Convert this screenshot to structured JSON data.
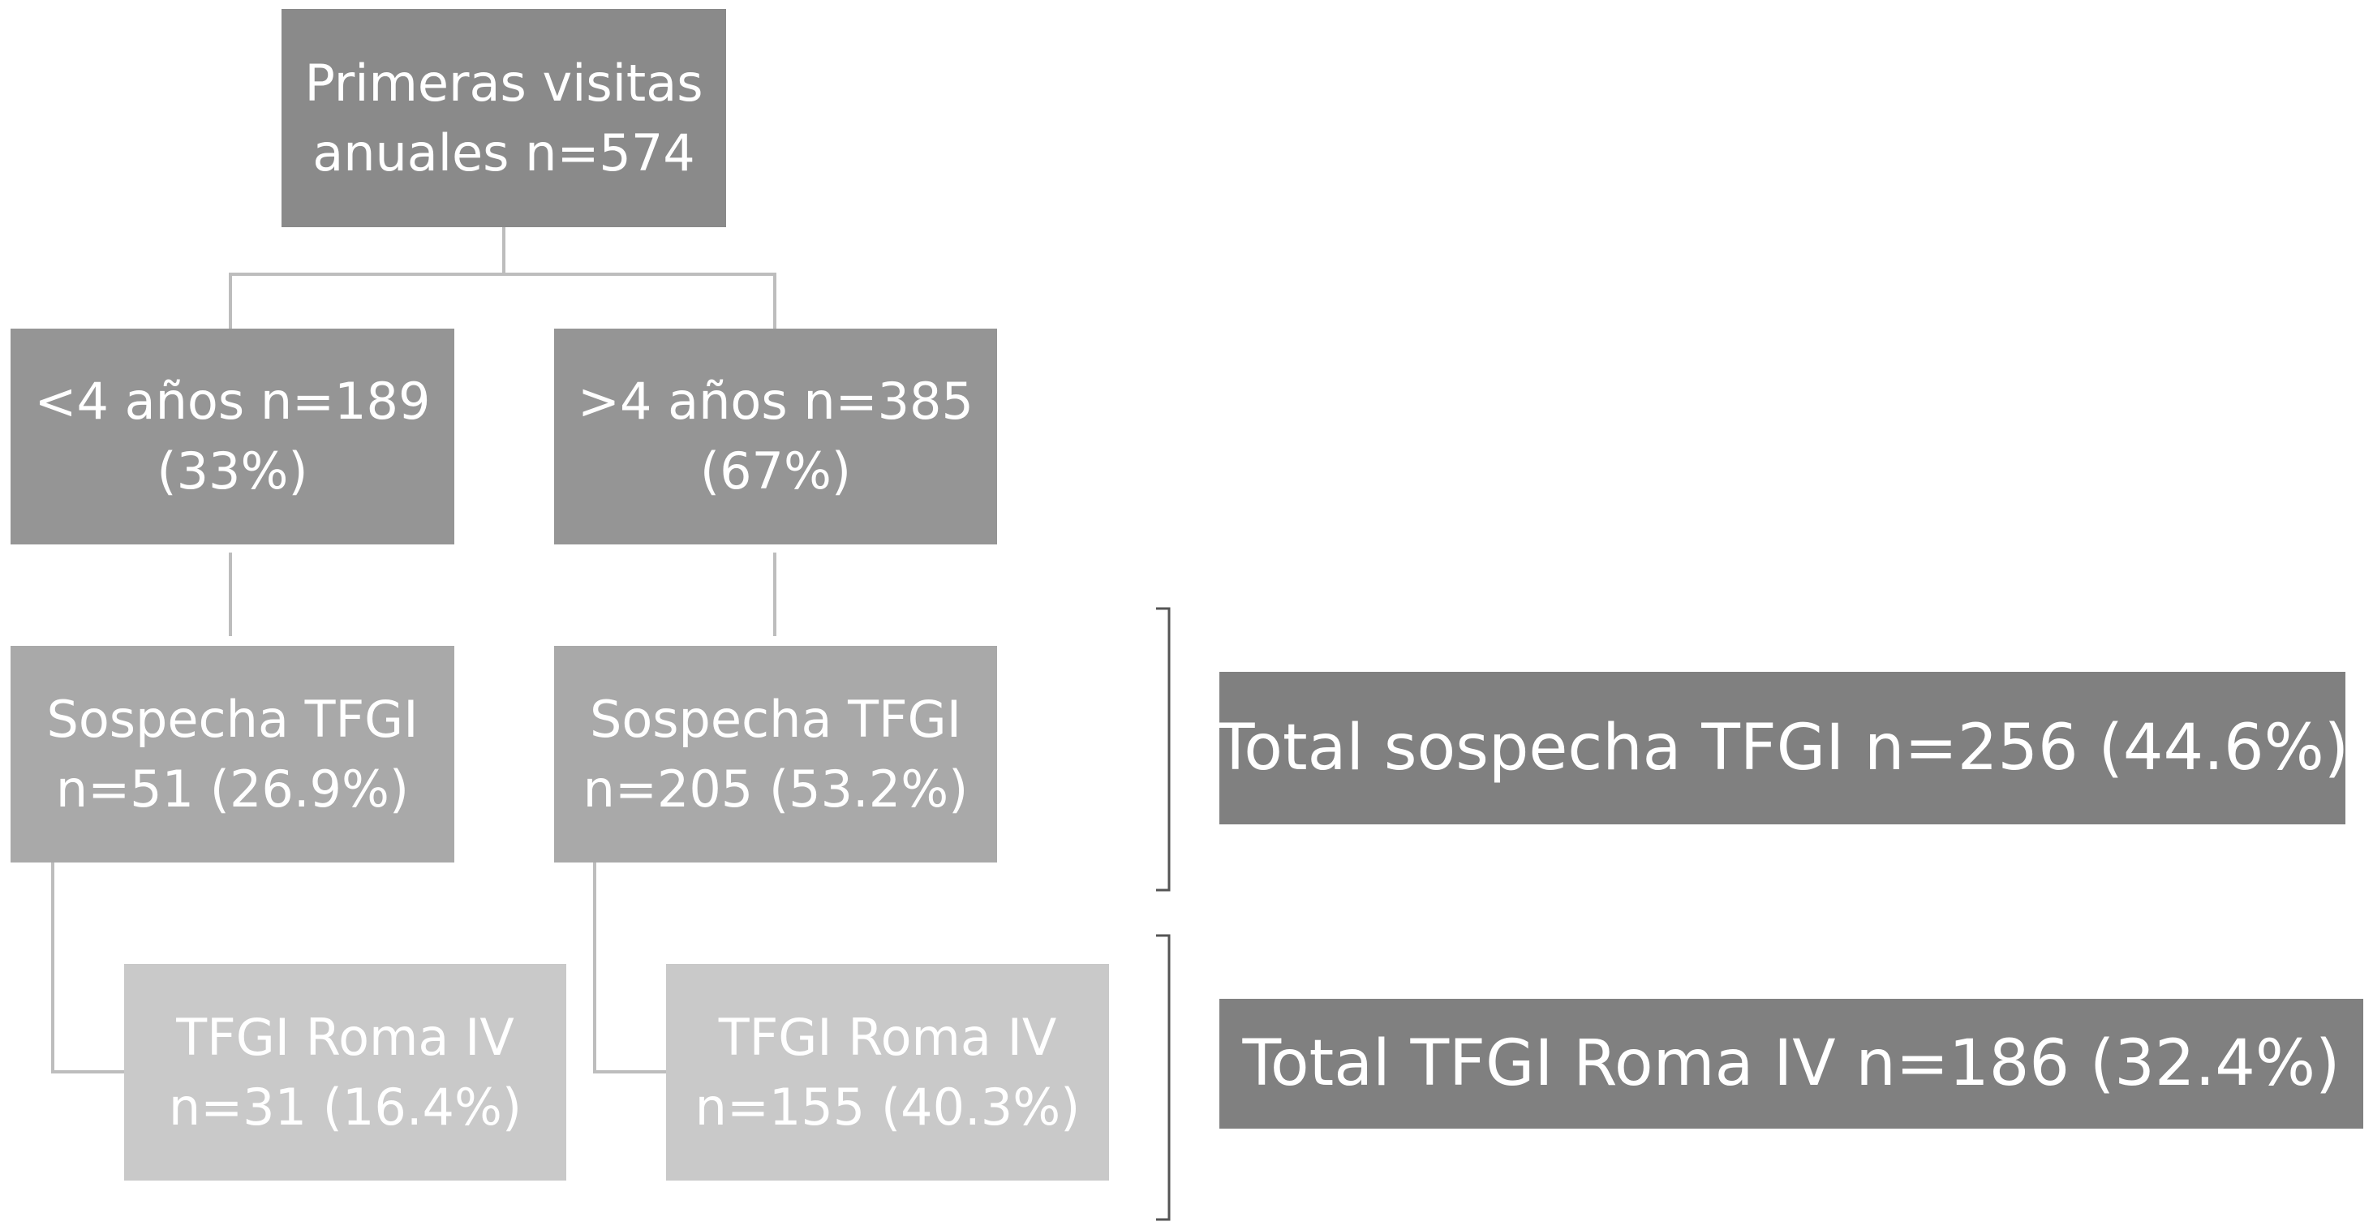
{
  "nodes": [
    {
      "lines": [
        "Primeras visitas",
        "anuales n=574"
      ]
    },
    {
      "lines": [
        "<4 años n=189",
        "(33%)"
      ]
    },
    {
      "lines": [
        ">4 años n=385",
        "(67%)"
      ]
    },
    {
      "lines": [
        "Sospecha TFGI",
        "n=51 (26.9%)"
      ]
    },
    {
      "lines": [
        "Sospecha TFGI",
        "n=205 (53.2%)"
      ]
    },
    {
      "lines": [
        "TFGI Roma IV",
        "n=31 (16.4%)"
      ]
    },
    {
      "lines": [
        "TFGI Roma IV",
        "n=155 (40.3%)"
      ]
    }
  ],
  "totals": [
    {
      "label": "Total sospecha TFGI n=256 (44.6%)"
    },
    {
      "label": "Total TFGI Roma IV n=186 (32.4%)"
    }
  ]
}
